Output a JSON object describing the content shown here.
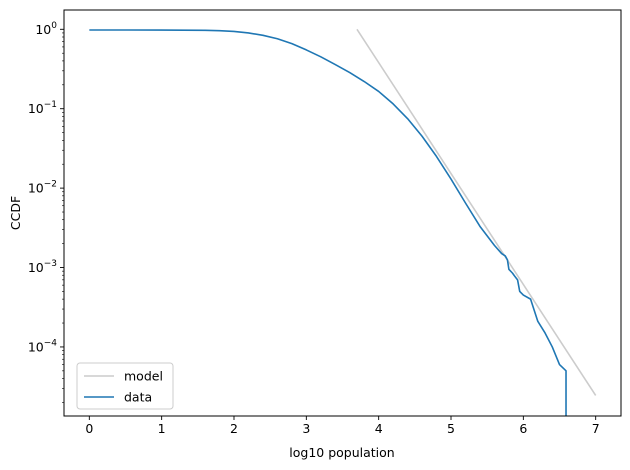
{
  "chart_data": {
    "type": "line",
    "title": "",
    "xlabel": "log10 population",
    "ylabel": "CCDF",
    "xscale": "linear",
    "yscale": "log",
    "xlim": [
      -0.35,
      7.35
    ],
    "ylim": [
      1.35e-05,
      1.75
    ],
    "xticks": [
      {
        "value": 0,
        "label": "0"
      },
      {
        "value": 1,
        "label": "1"
      },
      {
        "value": 2,
        "label": "2"
      },
      {
        "value": 3,
        "label": "3"
      },
      {
        "value": 4,
        "label": "4"
      },
      {
        "value": 5,
        "label": "5"
      },
      {
        "value": 6,
        "label": "6"
      },
      {
        "value": 7,
        "label": "7"
      }
    ],
    "yticks": [
      {
        "value": 1,
        "base": "10",
        "exp": "0"
      },
      {
        "value": 0.1,
        "base": "10",
        "exp": "−1"
      },
      {
        "value": 0.01,
        "base": "10",
        "exp": "−2"
      },
      {
        "value": 0.001,
        "base": "10",
        "exp": "−3"
      },
      {
        "value": 0.0001,
        "base": "10",
        "exp": "−4"
      }
    ],
    "grid": false,
    "legend": {
      "position": "lower left"
    },
    "series": [
      {
        "name": "model",
        "color": "#cccccc",
        "x": [
          3.7,
          7.0
        ],
        "y": [
          1.0,
          2.45e-05
        ]
      },
      {
        "name": "data",
        "color": "#1f77b4",
        "x": [
          0,
          0.5,
          1.0,
          1.3,
          1.6,
          1.8,
          2.0,
          2.2,
          2.4,
          2.6,
          2.8,
          3.0,
          3.2,
          3.4,
          3.6,
          3.8,
          4.0,
          4.2,
          4.4,
          4.6,
          4.8,
          5.0,
          5.2,
          5.4,
          5.6,
          5.7,
          5.75,
          5.78,
          5.8,
          5.85,
          5.88,
          5.92,
          5.95,
          6.0,
          6.1,
          6.2,
          6.3,
          6.4,
          6.5,
          6.59,
          6.59
        ],
        "y": [
          0.98,
          0.98,
          0.978,
          0.975,
          0.97,
          0.96,
          0.94,
          0.9,
          0.84,
          0.76,
          0.66,
          0.55,
          0.45,
          0.36,
          0.285,
          0.22,
          0.165,
          0.115,
          0.075,
          0.045,
          0.025,
          0.013,
          0.0065,
          0.0033,
          0.0019,
          0.0015,
          0.0014,
          0.00125,
          0.00095,
          0.00085,
          0.00078,
          0.0007,
          0.0005,
          0.00045,
          0.0004,
          0.00021,
          0.00015,
          0.0001,
          6e-05,
          5e-05,
          1.35e-05
        ]
      }
    ]
  }
}
